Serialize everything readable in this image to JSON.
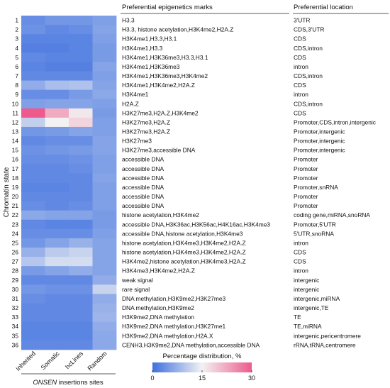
{
  "chart_data": {
    "type": "heatmap",
    "ylabel": "Chromatin state",
    "columns": [
      "Inherited",
      "Somatic",
      "hcLines",
      "Random"
    ],
    "column_group_label": "ONSEN insertions sites",
    "column_group_label_italic_part": "ONSEN",
    "column_group_label_rest": " insertions sites",
    "marks_header": "Preferential epigenetics marks",
    "location_header": "Preferential location",
    "colorbar": {
      "title": "Percentage distribution, %",
      "ticks": [
        0,
        15,
        30
      ],
      "range": [
        0,
        30
      ],
      "colors": [
        "#3d6fe0",
        "#f2f2f2",
        "#ee5a8c"
      ]
    },
    "rows": [
      {
        "state": "1",
        "marks": "H3.3",
        "location": "3'UTR",
        "values": [
          3.5,
          4.5,
          4.5,
          5.5
        ]
      },
      {
        "state": "2",
        "marks": "H3.3, histone acetylation,H3K4me2,H2A.Z",
        "location": "CDS,3'UTR",
        "values": [
          4.0,
          3.0,
          3.5,
          6.0
        ]
      },
      {
        "state": "3",
        "marks": "H3K4me1,H3.3,H3.1",
        "location": "CDS",
        "values": [
          2.5,
          2.5,
          2.5,
          5.5
        ]
      },
      {
        "state": "4",
        "marks": "H3K4me1,H3.3",
        "location": "CDS,intron",
        "values": [
          2.0,
          2.0,
          2.5,
          5.0
        ]
      },
      {
        "state": "5",
        "marks": "H3K4me1,H3K36me3,H3.3,H3.1",
        "location": "CDS",
        "values": [
          3.0,
          2.5,
          2.5,
          5.0
        ]
      },
      {
        "state": "6",
        "marks": "H3K4me1,H3K36me3",
        "location": "intron",
        "values": [
          2.5,
          2.0,
          2.0,
          6.0
        ]
      },
      {
        "state": "7",
        "marks": "H3K4me1,H3K36me3,H3K4me2",
        "location": "CDS,intron",
        "values": [
          3.0,
          3.0,
          3.0,
          5.5
        ]
      },
      {
        "state": "8",
        "marks": "H3K4me1,H3K4me2,H2A.Z",
        "location": "CDS",
        "values": [
          7.0,
          9.0,
          9.5,
          6.0
        ]
      },
      {
        "state": "9",
        "marks": "H3K4me1",
        "location": "intron",
        "values": [
          3.5,
          3.5,
          5.0,
          6.5
        ]
      },
      {
        "state": "10",
        "marks": "H2A.Z",
        "location": "CDS,intron",
        "values": [
          5.5,
          6.0,
          6.0,
          5.5
        ]
      },
      {
        "state": "11",
        "marks": "H3K27me3,H2A.Z,H3K4me2",
        "location": "CDS",
        "values": [
          30.0,
          22.0,
          16.0,
          5.0
        ]
      },
      {
        "state": "12",
        "marks": "H3K27me3,H2A.Z",
        "location": "Promoter,CDS,intron,intergenic",
        "values": [
          11.0,
          15.0,
          18.0,
          5.5
        ]
      },
      {
        "state": "13",
        "marks": "H3K27me3,H2A.Z",
        "location": "Promoter,intergenic",
        "values": [
          4.5,
          5.0,
          6.0,
          5.5
        ]
      },
      {
        "state": "14",
        "marks": "H3K27me3",
        "location": "Promoter,intergenic",
        "values": [
          3.0,
          3.5,
          3.5,
          6.0
        ]
      },
      {
        "state": "15",
        "marks": "H3K27me3,accessible DNA",
        "location": "Promoter,intergenic",
        "values": [
          4.0,
          4.5,
          5.0,
          6.0
        ]
      },
      {
        "state": "16",
        "marks": "accessible DNA",
        "location": "Promoter",
        "values": [
          3.5,
          3.5,
          4.0,
          5.5
        ]
      },
      {
        "state": "17",
        "marks": "accessible DNA",
        "location": "Promoter",
        "values": [
          3.0,
          3.0,
          3.5,
          5.5
        ]
      },
      {
        "state": "18",
        "marks": "accessible DNA",
        "location": "Promoter",
        "values": [
          3.0,
          3.0,
          3.0,
          6.0
        ]
      },
      {
        "state": "19",
        "marks": "accessible DNA",
        "location": "Promoter,snRNA",
        "values": [
          2.5,
          2.5,
          3.0,
          5.5
        ]
      },
      {
        "state": "20",
        "marks": "accessible DNA",
        "location": "Promoter",
        "values": [
          3.0,
          3.0,
          3.0,
          5.5
        ]
      },
      {
        "state": "21",
        "marks": "accessible DNA",
        "location": "Promoter",
        "values": [
          3.5,
          3.0,
          3.5,
          5.5
        ]
      },
      {
        "state": "22",
        "marks": "histone acetylation,H3K4me2",
        "location": "coding gene,miRNA,snoRNA",
        "values": [
          6.5,
          6.0,
          6.0,
          5.0
        ]
      },
      {
        "state": "23",
        "marks": "accessible DNA,H3K36ac,H3K56ac,H4K16ac,H3K4me3",
        "location": "Promoter,5'UTR",
        "values": [
          3.0,
          2.5,
          2.5,
          5.0
        ]
      },
      {
        "state": "24",
        "marks": "accessible DNA,histone acetylation,H3K4me3",
        "location": "5'UTR,snoRNA",
        "values": [
          3.5,
          3.5,
          3.5,
          5.5
        ]
      },
      {
        "state": "25",
        "marks": "histone acetylation,H3K4me3,H3K4me2,H2A.Z",
        "location": "intron",
        "values": [
          4.5,
          6.0,
          7.5,
          6.0
        ]
      },
      {
        "state": "26",
        "marks": "histone acetylation,H3K4me3,H3K4me2,H2A.Z",
        "location": "CDS",
        "values": [
          7.5,
          10.5,
          11.5,
          6.0
        ]
      },
      {
        "state": "27",
        "marks": "H3K4me2,histone acetylation,H3K4me3,H2A.Z",
        "location": "CDS",
        "values": [
          10.0,
          12.5,
          12.5,
          6.0
        ]
      },
      {
        "state": "28",
        "marks": "H3K4me3,H3K4me2,H2A.Z",
        "location": "intron",
        "values": [
          5.0,
          6.0,
          7.0,
          6.0
        ]
      },
      {
        "state": "29",
        "marks": "weak signal",
        "location": "intergenic",
        "values": [
          3.0,
          3.0,
          3.0,
          7.0
        ]
      },
      {
        "state": "30",
        "marks": "rare signal",
        "location": "intergenic",
        "values": [
          4.5,
          4.0,
          4.0,
          11.5
        ]
      },
      {
        "state": "31",
        "marks": "DNA methylation,H3K9me2,H3K27me3",
        "location": "intergenic,miRNA",
        "values": [
          3.5,
          3.0,
          3.0,
          7.0
        ]
      },
      {
        "state": "32",
        "marks": "DNA methylation,H3K9me2",
        "location": "intergenic,TE",
        "values": [
          3.0,
          3.0,
          3.0,
          7.5
        ]
      },
      {
        "state": "33",
        "marks": "H3K9me2,DNA methylation",
        "location": "TE",
        "values": [
          3.0,
          3.0,
          3.0,
          8.0
        ]
      },
      {
        "state": "34",
        "marks": "H3K9me2,DNA methylation,H3K27me1",
        "location": "TE,miRNA",
        "values": [
          2.5,
          2.5,
          2.5,
          7.0
        ]
      },
      {
        "state": "35",
        "marks": "H3K9me2,DNA methylation,H2A.X",
        "location": "intergenic,pericentromere",
        "values": [
          2.5,
          2.5,
          2.5,
          6.5
        ]
      },
      {
        "state": "36",
        "marks": "CENH3,H3K9me2,DNA methylation,accessible DNA",
        "location": "rRNA,tRNA,centromere",
        "values": [
          3.0,
          3.0,
          3.0,
          6.5
        ]
      }
    ]
  }
}
